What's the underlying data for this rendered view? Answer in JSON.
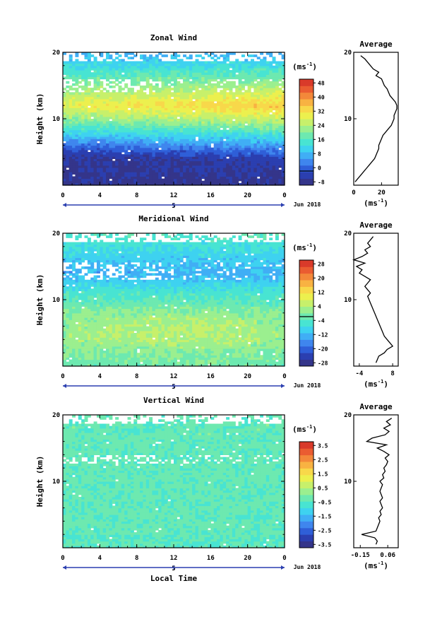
{
  "chart_data": [
    {
      "type": "heatmap",
      "title": "Zonal Wind",
      "ylabel": "Height (km)",
      "ylim": [
        0,
        20
      ],
      "yticks": [
        "20",
        "10"
      ],
      "xlim": [
        0,
        24
      ],
      "xticks": [
        "0",
        "4",
        "8",
        "12",
        "16",
        "20",
        "0"
      ],
      "day_label": "5",
      "date_label": "Jun 2018",
      "colorbar": {
        "unit": "(ms",
        "unit_exp": "-1",
        "unit_close": ")",
        "levels": [
          -8,
          -4,
          0,
          4,
          8,
          12,
          16,
          20,
          24,
          28,
          32,
          36,
          40,
          44,
          48,
          52
        ],
        "labels": [
          "48",
          "40",
          "32",
          "24",
          "16",
          "8",
          "0",
          "-8"
        ],
        "zero_line": 0
      },
      "field": {
        "surface": -6,
        "lower_trough": -2,
        "trough_height": 4,
        "upper_peak": 34,
        "peak_height": 12,
        "late_boost": 6,
        "top": 10,
        "gap_lo": 14,
        "gap_hi": 16
      },
      "profile": {
        "title": "Average",
        "xlim": [
          0,
          32
        ],
        "xticks": [
          "0",
          "20"
        ],
        "xtick_values": [
          0,
          20
        ],
        "yticks": [
          "20",
          "10"
        ],
        "unit": "(ms",
        "unit_exp": "-1",
        "unit_close": ")",
        "heights": [
          0.5,
          1,
          1.5,
          2,
          2.5,
          3,
          3.5,
          4,
          4.5,
          5,
          5.5,
          6,
          6.5,
          7,
          7.5,
          8,
          8.5,
          9,
          9.5,
          10,
          10.5,
          11,
          11.5,
          12,
          12.5,
          13,
          13.5,
          14,
          14.5,
          15,
          15.5,
          16,
          16.5,
          17,
          17.5,
          18,
          18.5,
          19,
          19.5
        ],
        "values": [
          1,
          3,
          5,
          7,
          9,
          11,
          13,
          15,
          16,
          17,
          18,
          18,
          19,
          20,
          21,
          23,
          25,
          27,
          28,
          29,
          29,
          30,
          31,
          31,
          30,
          28,
          26,
          25,
          24,
          22,
          21,
          20,
          16,
          18,
          14,
          12,
          10,
          8,
          5
        ]
      }
    },
    {
      "type": "heatmap",
      "title": "Meridional Wind",
      "ylabel": "Height (km)",
      "ylim": [
        0,
        20
      ],
      "yticks": [
        "20",
        "10"
      ],
      "xlim": [
        0,
        24
      ],
      "xticks": [
        "0",
        "4",
        "8",
        "12",
        "16",
        "20",
        "0"
      ],
      "day_label": "5",
      "date_label": "Jun 2018",
      "colorbar": {
        "unit": "(ms",
        "unit_exp": "-1",
        "unit_close": ")",
        "levels": [
          -28,
          -24,
          -20,
          -16,
          -12,
          -8,
          -4,
          0,
          4,
          8,
          12,
          16,
          20,
          24,
          28,
          32
        ],
        "labels": [
          "28",
          "20",
          "12",
          "4",
          "-4",
          "-12",
          "-20",
          "-28"
        ],
        "zero_line": 0
      },
      "field": {
        "surface": 2,
        "mid": 6,
        "mid_height": 4,
        "upper_neg": -10,
        "neg_height": 14,
        "late_boost": 3,
        "top": 0,
        "gap_lo": 13,
        "gap_hi": 15.5
      },
      "profile": {
        "title": "Average",
        "xlim": [
          -6,
          10
        ],
        "xticks": [
          "-4",
          "8"
        ],
        "xtick_values": [
          -4,
          8
        ],
        "yticks": [
          "20",
          "10"
        ],
        "unit": "(ms",
        "unit_exp": "-1",
        "unit_close": ")",
        "heights": [
          0.5,
          1,
          1.5,
          2,
          2.5,
          3,
          3.5,
          4,
          4.5,
          5,
          5.5,
          6,
          6.5,
          7,
          7.5,
          8,
          8.5,
          9,
          9.5,
          10,
          10.5,
          11,
          11.5,
          12,
          12.5,
          13,
          13.5,
          14,
          14.5,
          15,
          15.5,
          16,
          16.5,
          17,
          17.5,
          18,
          18.5,
          19,
          19.5
        ],
        "values": [
          2,
          2.5,
          3,
          5,
          6,
          8,
          7,
          6,
          5,
          4.5,
          4,
          3.5,
          3,
          2.5,
          2,
          1.5,
          1,
          0.5,
          0,
          -0.5,
          -1,
          0,
          -1,
          -2,
          -1,
          0,
          -2,
          -4,
          -3,
          -5,
          -2,
          -6,
          -3,
          -1,
          -2,
          0,
          -1,
          0,
          1
        ]
      }
    },
    {
      "type": "heatmap",
      "title": "Vertical Wind",
      "ylabel": "Height (km)",
      "xlabel": "Local Time",
      "ylim": [
        0,
        20
      ],
      "yticks": [
        "20",
        "10"
      ],
      "xlim": [
        0,
        24
      ],
      "xticks": [
        "0",
        "4",
        "8",
        "12",
        "16",
        "20",
        "0"
      ],
      "day_label": "5",
      "date_label": "Jun 2018",
      "colorbar": {
        "unit": "(ms",
        "unit_exp": "-1",
        "unit_close": ")",
        "levels": [
          -3.5,
          -3,
          -2.5,
          -2,
          -1.5,
          -1,
          -0.5,
          0,
          0.5,
          1,
          1.5,
          2,
          2.5,
          3,
          3.5,
          4
        ],
        "labels": [
          "3.5",
          "2.5",
          "1.5",
          "0.5",
          "-0.5",
          "-1.5",
          "-2.5",
          "-3.5"
        ],
        "zero_line": null
      },
      "field": {
        "base": 0.1,
        "amp": 0.45,
        "top": 0.2,
        "gap_lo": 12.5,
        "gap_hi": 14
      },
      "profile": {
        "title": "Average",
        "xlim": [
          -0.2,
          0.14
        ],
        "xticks": [
          "-0.15",
          "0.06"
        ],
        "xtick_values": [
          -0.15,
          0.06
        ],
        "yticks": [
          "20",
          "10"
        ],
        "unit": "(ms",
        "unit_exp": "-1",
        "unit_close": ")",
        "heights": [
          0.5,
          1,
          1.5,
          2,
          2.5,
          3,
          3.5,
          4,
          4.5,
          5,
          5.5,
          6,
          6.5,
          7,
          7.5,
          8,
          8.5,
          9,
          9.5,
          10,
          10.5,
          11,
          11.5,
          12,
          12.5,
          13,
          13.5,
          14,
          14.5,
          15,
          15.5,
          16,
          16.5,
          17,
          17.5,
          18,
          18.5,
          19,
          19.5
        ],
        "values": [
          -0.03,
          -0.02,
          -0.04,
          -0.14,
          -0.03,
          -0.02,
          -0.01,
          0.0,
          -0.01,
          0.01,
          0.0,
          0.02,
          0.01,
          0.0,
          0.02,
          0.01,
          0.0,
          0.01,
          0.02,
          0.0,
          0.03,
          0.02,
          0.04,
          0.03,
          0.05,
          0.06,
          0.04,
          0.07,
          0.03,
          -0.02,
          0.05,
          -0.1,
          -0.06,
          0.04,
          0.07,
          0.03,
          0.08,
          0.05,
          0.09
        ]
      }
    }
  ]
}
